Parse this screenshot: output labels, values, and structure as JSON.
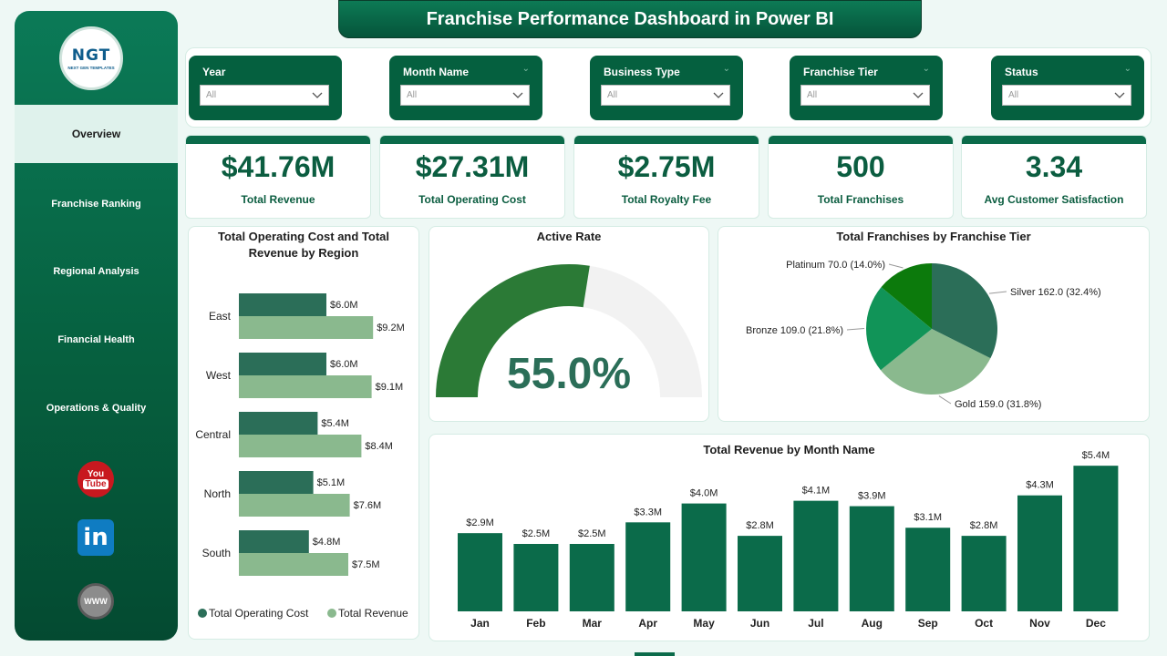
{
  "title": "Franchise Performance Dashboard in Power BI",
  "logo": {
    "mark": "NGT",
    "sub": "NEXT GEN TEMPLATES"
  },
  "nav": [
    {
      "label": "Overview",
      "active": true
    },
    {
      "label": "Franchise Ranking",
      "active": false
    },
    {
      "label": "Regional Analysis",
      "active": false
    },
    {
      "label": "Financial Health",
      "active": false
    },
    {
      "label": "Operations & Quality",
      "active": false
    }
  ],
  "social": {
    "youtube_top": "You",
    "youtube_bottom": "Tube",
    "linkedin": "in",
    "web": "WWW"
  },
  "filters": [
    {
      "label": "Year",
      "value": "All"
    },
    {
      "label": "Month Name",
      "value": "All"
    },
    {
      "label": "Business Type",
      "value": "All"
    },
    {
      "label": "Franchise Tier",
      "value": "All"
    },
    {
      "label": "Status",
      "value": "All"
    }
  ],
  "kpis": [
    {
      "value": "$41.76M",
      "label": "Total Revenue"
    },
    {
      "value": "$27.31M",
      "label": "Total Operating Cost"
    },
    {
      "value": "$2.75M",
      "label": "Total Royalty Fee"
    },
    {
      "value": "500",
      "label": "Total Franchises"
    },
    {
      "value": "3.34",
      "label": "Avg Customer Satisfaction"
    }
  ],
  "colors": {
    "primary": "#0b6b4a",
    "light": "#8ab98e",
    "gauge_fill": "#2b7a36",
    "gauge_track": "#f2f2f2"
  },
  "chart_data": [
    {
      "type": "bar",
      "orientation": "horizontal",
      "title": "Total Operating Cost and Total Revenue by Region",
      "categories": [
        "East",
        "West",
        "Central",
        "North",
        "South"
      ],
      "series": [
        {
          "name": "Total Operating Cost",
          "color": "#2b6e58",
          "values": [
            6.0,
            6.0,
            5.4,
            5.1,
            4.8
          ],
          "labels": [
            "$6.0M",
            "$6.0M",
            "$5.4M",
            "$5.1M",
            "$4.8M"
          ]
        },
        {
          "name": "Total Revenue",
          "color": "#8ab98e",
          "values": [
            9.2,
            9.1,
            8.4,
            7.6,
            7.5
          ],
          "labels": [
            "$9.2M",
            "$9.1M",
            "$8.4M",
            "$7.6M",
            "$7.5M"
          ]
        }
      ],
      "xlim": [
        0,
        10
      ],
      "legend": "bottom"
    },
    {
      "type": "gauge",
      "title": "Active Rate",
      "value": 55.0,
      "max": 100,
      "label": "55.0%"
    },
    {
      "type": "pie",
      "title": "Total Franchises by Franchise Tier",
      "slices": [
        {
          "name": "Silver",
          "value": 162.0,
          "color": "#2b6e58",
          "label": "Silver 162.0 (32.4%)"
        },
        {
          "name": "Gold",
          "value": 159.0,
          "color": "#8ab98e",
          "label": "Gold 159.0 (31.8%)"
        },
        {
          "name": "Bronze",
          "value": 109.0,
          "color": "#119458",
          "label": "Bronze 109.0 (21.8%)"
        },
        {
          "name": "Platinum",
          "value": 70.0,
          "color": "#0c7a0c",
          "label": "Platinum 70.0 (14.0%)"
        }
      ]
    },
    {
      "type": "bar",
      "title": "Total Revenue by Month Name",
      "categories": [
        "Jan",
        "Feb",
        "Mar",
        "Apr",
        "May",
        "Jun",
        "Jul",
        "Aug",
        "Sep",
        "Oct",
        "Nov",
        "Dec"
      ],
      "values": [
        2.9,
        2.5,
        2.5,
        3.3,
        4.0,
        2.8,
        4.1,
        3.9,
        3.1,
        2.8,
        4.3,
        5.4
      ],
      "labels": [
        "$2.9M",
        "$2.5M",
        "$2.5M",
        "$3.3M",
        "$4.0M",
        "$2.8M",
        "$4.1M",
        "$3.9M",
        "$3.1M",
        "$2.8M",
        "$4.3M",
        "$5.4M"
      ],
      "ylim": [
        0,
        5.5
      ],
      "color": "#0b6b4a"
    }
  ]
}
